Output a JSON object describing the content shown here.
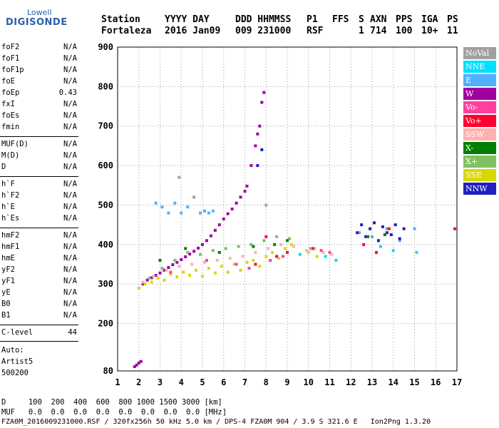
{
  "logo": {
    "line1": "Lowell",
    "line2": "DIGISONDE"
  },
  "header": {
    "columns": [
      "Station",
      "YYYY DAY",
      "DDD HHMMSS",
      "P1",
      "FFS",
      "S",
      "AXN",
      "PPS",
      "IGA",
      "PS"
    ],
    "values": [
      "Fortaleza",
      "2016 Jan09",
      "009 231000",
      "RSF",
      "",
      "1",
      "714",
      "100",
      "10+",
      "11"
    ]
  },
  "params": {
    "group1": [
      {
        "k": "foF2",
        "v": "N/A"
      },
      {
        "k": "foF1",
        "v": "N/A"
      },
      {
        "k": "foF1p",
        "v": "N/A"
      },
      {
        "k": "foE",
        "v": "N/A"
      },
      {
        "k": "foEp",
        "v": "0.43"
      },
      {
        "k": "fxI",
        "v": "N/A"
      },
      {
        "k": "foEs",
        "v": "N/A"
      },
      {
        "k": "fmin",
        "v": "N/A"
      }
    ],
    "group2": [
      {
        "k": "MUF(D)",
        "v": "N/A"
      },
      {
        "k": "M(D)",
        "v": "N/A"
      },
      {
        "k": "D",
        "v": "N/A"
      }
    ],
    "group3": [
      {
        "k": "h`F",
        "v": "N/A"
      },
      {
        "k": "h`F2",
        "v": "N/A"
      },
      {
        "k": "h`E",
        "v": "N/A"
      },
      {
        "k": "h`Es",
        "v": "N/A"
      }
    ],
    "group4": [
      {
        "k": "hmF2",
        "v": "N/A"
      },
      {
        "k": "hmF1",
        "v": "N/A"
      },
      {
        "k": "hmE",
        "v": "N/A"
      },
      {
        "k": "yF2",
        "v": "N/A"
      },
      {
        "k": "yF1",
        "v": "N/A"
      },
      {
        "k": "yE",
        "v": "N/A"
      },
      {
        "k": "B0",
        "v": "N/A"
      },
      {
        "k": "B1",
        "v": "N/A"
      }
    ],
    "clevel": {
      "k": "C-level",
      "v": "44"
    },
    "auto": [
      "Auto:",
      "Artist5",
      "500200"
    ]
  },
  "legend": [
    {
      "label": "NoVal",
      "color": "#a0a0a0",
      "text": "#ffffff"
    },
    {
      "label": "NNE",
      "color": "#00e0ff",
      "text": "#ffffff"
    },
    {
      "label": "E",
      "color": "#4fb0ff",
      "text": "#ffffff"
    },
    {
      "label": "W",
      "color": "#a000a0",
      "text": "#ffffff"
    },
    {
      "label": "Vo-",
      "color": "#ff3fa0",
      "text": "#ffffff"
    },
    {
      "label": "Vo+",
      "color": "#ff0030",
      "text": "#ffffff"
    },
    {
      "label": "SSW",
      "color": "#ffb0b0",
      "text": "#ffffff"
    },
    {
      "label": "X-",
      "color": "#008000",
      "text": "#ffffff"
    },
    {
      "label": "X+",
      "color": "#80c060",
      "text": "#ffffff"
    },
    {
      "label": "SSE",
      "color": "#d8d800",
      "text": "#ffffff"
    },
    {
      "label": "NNW",
      "color": "#2020c0",
      "text": "#ffffff"
    }
  ],
  "footer": {
    "d_row": "D     100  200  400  600  800 1000 1500 3000 [km]",
    "muf_row": "MUF   0.0  0.0  0.0  0.0  0.0  0.0  0.0  0.0 [MHz]",
    "file_line": "FZA0M_2016009231000.RSF / 320fx256h 50 kHz 5.0 km / DPS-4 FZA0M 904 / 3.9 S 321.6 E   Ion2Png 1.3.20"
  },
  "chart_data": {
    "type": "scatter",
    "title": "",
    "xlabel": "",
    "ylabel": "",
    "xlim": [
      1,
      17
    ],
    "ylim": [
      80,
      900
    ],
    "xticks": [
      1,
      2,
      3,
      4,
      5,
      6,
      7,
      8,
      9,
      10,
      11,
      12,
      13,
      14,
      15,
      16,
      17
    ],
    "yticks": [
      80,
      200,
      300,
      400,
      500,
      600,
      700,
      800,
      900
    ],
    "grid": true,
    "series": [
      {
        "name": "W",
        "color": "#a000a0",
        "x": [
          1.8,
          1.9,
          2.0,
          2.1,
          2.2,
          2.4,
          2.6,
          2.8,
          3.0,
          3.2,
          3.4,
          3.6,
          3.8,
          4.0,
          4.2,
          4.4,
          4.6,
          4.8,
          5.0,
          5.2,
          5.4,
          5.6,
          5.8,
          6.0,
          6.2,
          6.4,
          6.6,
          6.8,
          7.0,
          7.1,
          7.3,
          7.5,
          7.6,
          7.7,
          7.8,
          7.9
        ],
        "y": [
          91,
          95,
          100,
          104,
          300,
          310,
          316,
          322,
          328,
          335,
          342,
          349,
          355,
          362,
          369,
          376,
          383,
          391,
          400,
          410,
          422,
          436,
          450,
          465,
          478,
          490,
          505,
          520,
          535,
          548,
          600,
          650,
          680,
          700,
          760,
          785
        ]
      },
      {
        "name": "SSE",
        "color": "#d8d800",
        "x": [
          2.0,
          2.3,
          2.6,
          2.9,
          3.2,
          3.5,
          3.8,
          4.1,
          4.4,
          4.7,
          5.0,
          5.3,
          5.6,
          5.9,
          6.2,
          6.5,
          6.8,
          7.1,
          7.4,
          7.7,
          8.0,
          8.3,
          8.6,
          8.9,
          9.2,
          10.0,
          10.4
        ],
        "y": [
          290,
          300,
          305,
          315,
          310,
          325,
          318,
          330,
          322,
          335,
          320,
          340,
          328,
          345,
          330,
          350,
          335,
          355,
          360,
          345,
          370,
          380,
          365,
          390,
          400,
          380,
          370
        ]
      },
      {
        "name": "SSW",
        "color": "#ffb0b0",
        "x": [
          2.2,
          2.7,
          3.3,
          3.9,
          4.5,
          5.1,
          5.7,
          6.3,
          6.9,
          7.5,
          8.1,
          8.7,
          9.3,
          9.9,
          10.3,
          10.7,
          11.1
        ],
        "y": [
          305,
          320,
          335,
          345,
          350,
          355,
          360,
          365,
          370,
          380,
          390,
          400,
          395,
          385,
          390,
          380,
          375
        ]
      },
      {
        "name": "X+",
        "color": "#80c060",
        "x": [
          2.5,
          3.1,
          3.7,
          4.3,
          4.9,
          5.5,
          6.1,
          6.7,
          7.3,
          7.9,
          8.5,
          9.1
        ],
        "y": [
          315,
          340,
          360,
          380,
          375,
          385,
          390,
          395,
          400,
          410,
          420,
          415
        ]
      },
      {
        "name": "E",
        "color": "#4fb0ff",
        "x": [
          2.8,
          3.1,
          3.4,
          3.7,
          4.0,
          4.3,
          4.9,
          5.1,
          5.3,
          5.5,
          12.4,
          13.0,
          13.7,
          14.3,
          15.0
        ],
        "y": [
          505,
          495,
          480,
          505,
          480,
          495,
          480,
          485,
          480,
          485,
          430,
          420,
          440,
          410,
          440
        ]
      },
      {
        "name": "NNW",
        "color": "#2020c0",
        "x": [
          7.6,
          7.8,
          12.3,
          12.5,
          12.7,
          12.9,
          13.1,
          13.3,
          13.5,
          13.7,
          13.9,
          14.1,
          14.3,
          14.5
        ],
        "y": [
          600,
          640,
          430,
          450,
          420,
          440,
          455,
          410,
          445,
          430,
          425,
          450,
          415,
          440
        ]
      },
      {
        "name": "Vo+",
        "color": "#ff0030",
        "x": [
          7.5,
          8.0,
          8.5,
          9.0,
          10.2,
          12.6,
          13.2,
          13.8,
          16.9
        ],
        "y": [
          350,
          420,
          370,
          380,
          390,
          400,
          380,
          440,
          440
        ]
      },
      {
        "name": "Vo-",
        "color": "#ff3fa0",
        "x": [
          3.5,
          5.2,
          6.6,
          7.2,
          8.2,
          8.8,
          10.6,
          11.0
        ],
        "y": [
          330,
          360,
          350,
          340,
          360,
          370,
          385,
          380
        ]
      },
      {
        "name": "X-",
        "color": "#008000",
        "x": [
          3.0,
          4.2,
          5.8,
          7.4,
          8.4,
          9.0,
          12.8,
          13.6
        ],
        "y": [
          360,
          390,
          380,
          395,
          400,
          410,
          420,
          425
        ]
      },
      {
        "name": "NNE",
        "color": "#00e0ff",
        "x": [
          9.6,
          10.8,
          11.3,
          13.4,
          14.0,
          15.1
        ],
        "y": [
          375,
          370,
          360,
          395,
          385,
          380
        ]
      },
      {
        "name": "NoVal",
        "color": "#a0a0a0",
        "x": [
          3.9,
          4.6,
          8.0,
          10.1
        ],
        "y": [
          570,
          520,
          500,
          390
        ]
      }
    ]
  }
}
